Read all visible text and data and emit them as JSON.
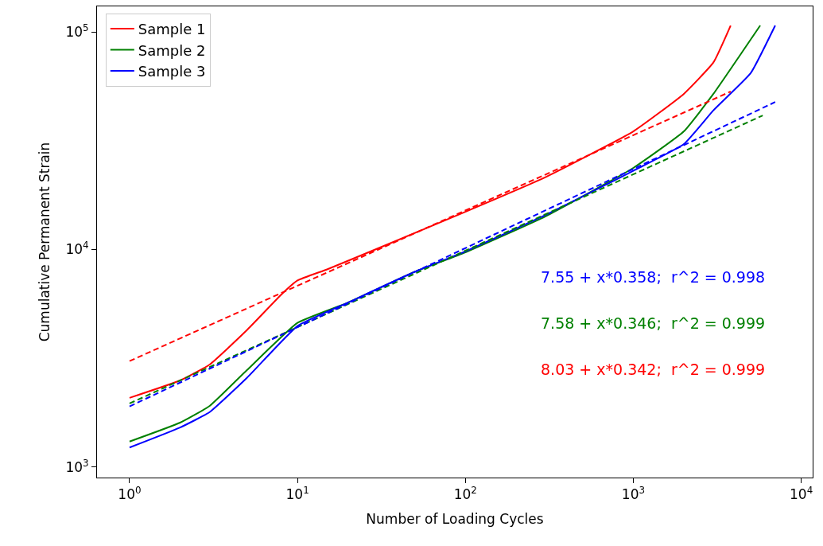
{
  "chart_data": {
    "type": "line",
    "xlabel": "Number of Loading Cycles",
    "ylabel": "Cumulative Permanent Strain",
    "log": "xy",
    "legend": "top left",
    "xlim": [
      0.64,
      11700
    ],
    "ylim": [
      895,
      131000
    ],
    "xticks": [
      {
        "value": 1,
        "label": "10$^{0}$"
      },
      {
        "value": 10,
        "label": "10$^{1}$"
      },
      {
        "value": 100,
        "label": "10$^{2}$"
      },
      {
        "value": 1000,
        "label": "10$^{3}$"
      },
      {
        "value": 10000,
        "label": "10$^{4}$"
      }
    ],
    "yticks": [
      {
        "value": 1000,
        "label": "10$^{3}$"
      },
      {
        "value": 10000,
        "label": "10$^{4}$"
      },
      {
        "value": 100000,
        "label": "10$^{5}$"
      }
    ],
    "annotations": [
      "7.55 + x*0.358;  r^2 = 0.998",
      "7.58 + x*0.346;  r^2 = 0.999",
      "8.03 + x*0.342;  r^2 = 0.999"
    ],
    "series": [
      {
        "name": "Sample 1",
        "color": "#ff0000",
        "line_style": "solid",
        "x": [
          1,
          2,
          3,
          5,
          8,
          10,
          15,
          30,
          100,
          300,
          1000,
          2000,
          3000,
          3800
        ],
        "values": [
          2080,
          2500,
          2960,
          4260,
          6200,
          7200,
          8100,
          10100,
          14900,
          21500,
          34900,
          51900,
          72400,
          107000
        ]
      },
      {
        "name": "Sample 2",
        "color": "#008000",
        "line_style": "solid",
        "x": [
          1,
          2,
          3,
          5,
          10,
          20,
          50,
          100,
          300,
          1000,
          2000,
          3000,
          5700
        ],
        "values": [
          1310,
          1600,
          1910,
          2790,
          4600,
          5700,
          7900,
          9700,
          14200,
          23700,
          34900,
          51900,
          107000
        ]
      },
      {
        "name": "Sample 3",
        "color": "#0000ff",
        "line_style": "solid",
        "x": [
          1,
          2,
          3,
          5,
          10,
          20,
          50,
          100,
          300,
          1000,
          2000,
          3000,
          5000,
          7000
        ],
        "values": [
          1230,
          1520,
          1790,
          2570,
          4450,
          5700,
          7900,
          9800,
          14400,
          23000,
          30500,
          43600,
          64600,
          107000
        ]
      },
      {
        "color": "#ff0000",
        "line_style": "dashed",
        "x": [
          1,
          3800
        ],
        "values": [
          3070,
          53200
        ]
      },
      {
        "color": "#008000",
        "line_style": "dashed",
        "x": [
          1,
          5900
        ],
        "values": [
          1960,
          41300
        ]
      },
      {
        "color": "#0000ff",
        "line_style": "dashed",
        "x": [
          1,
          7000
        ],
        "values": [
          1900,
          47600
        ]
      }
    ]
  }
}
